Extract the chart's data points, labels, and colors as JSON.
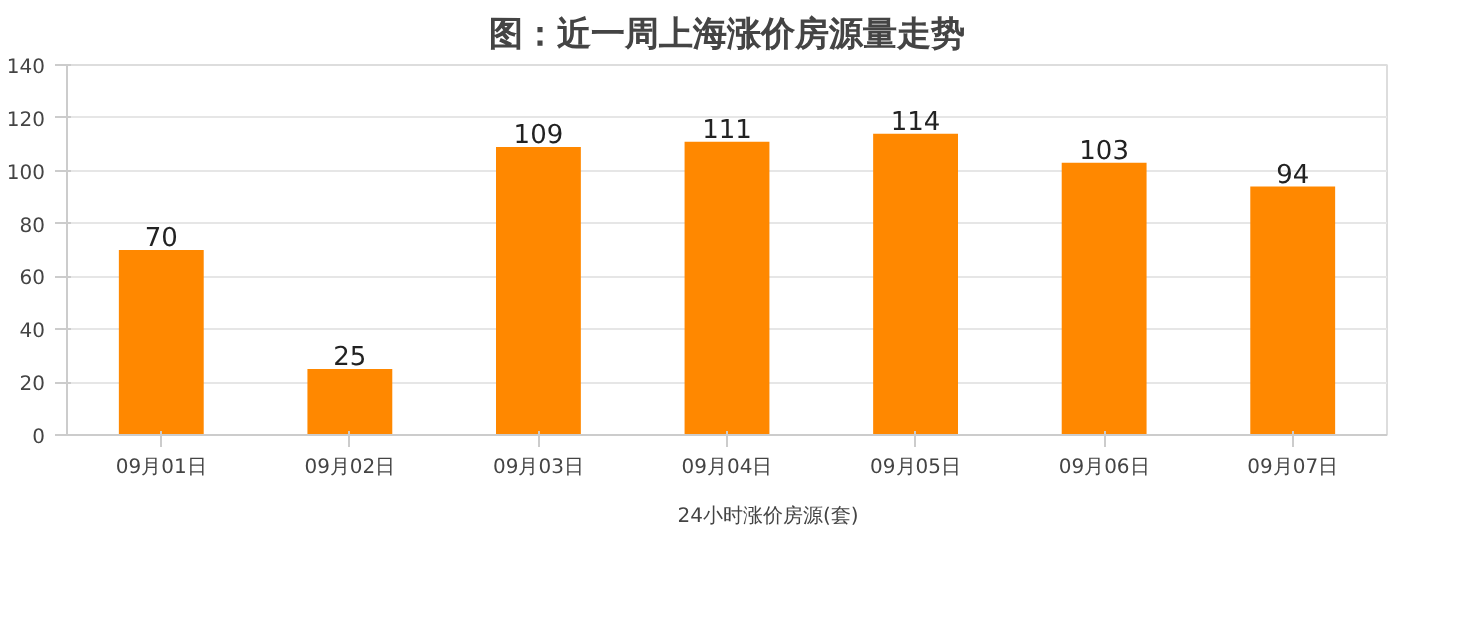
{
  "chart_data": {
    "type": "bar",
    "title": "图：近一周上海涨价房源量走势",
    "categories": [
      "09月01日",
      "09月02日",
      "09月03日",
      "09月04日",
      "09月05日",
      "09月06日",
      "09月07日"
    ],
    "series": [
      {
        "name": "24小时涨价房源(套)",
        "color": "#ff8800",
        "values": [
          70,
          25,
          109,
          111,
          114,
          103,
          94
        ]
      }
    ],
    "ylim": [
      0,
      140
    ],
    "yticks": [
      0,
      20,
      40,
      60,
      80,
      100,
      120,
      140
    ],
    "grid": "y",
    "legend": "bottom",
    "data_labels": true
  }
}
